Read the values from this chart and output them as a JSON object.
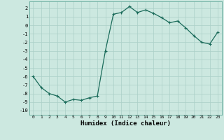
{
  "x": [
    0,
    1,
    2,
    3,
    4,
    5,
    6,
    7,
    8,
    9,
    10,
    11,
    12,
    13,
    14,
    15,
    16,
    17,
    18,
    19,
    20,
    21,
    22,
    23
  ],
  "y": [
    -6.0,
    -7.3,
    -8.0,
    -8.3,
    -9.0,
    -8.7,
    -8.8,
    -8.5,
    -8.3,
    -3.0,
    1.3,
    1.5,
    2.2,
    1.5,
    1.8,
    1.4,
    0.9,
    0.3,
    0.5,
    -0.3,
    -1.2,
    -2.0,
    -2.2,
    -0.8
  ],
  "title": "",
  "xlabel": "Humidex (Indice chaleur)",
  "ylabel": "",
  "xlim": [
    -0.5,
    23.5
  ],
  "ylim": [
    -10.5,
    2.8
  ],
  "yticks": [
    -10,
    -9,
    -8,
    -7,
    -6,
    -5,
    -4,
    -3,
    -2,
    -1,
    0,
    1,
    2
  ],
  "xticks": [
    0,
    1,
    2,
    3,
    4,
    5,
    6,
    7,
    8,
    9,
    10,
    11,
    12,
    13,
    14,
    15,
    16,
    17,
    18,
    19,
    20,
    21,
    22,
    23
  ],
  "line_color": "#1a6b5a",
  "bg_color": "#cce8e0",
  "grid_color": "#aacfc7",
  "marker": "+",
  "marker_size": 3,
  "linewidth": 0.9
}
